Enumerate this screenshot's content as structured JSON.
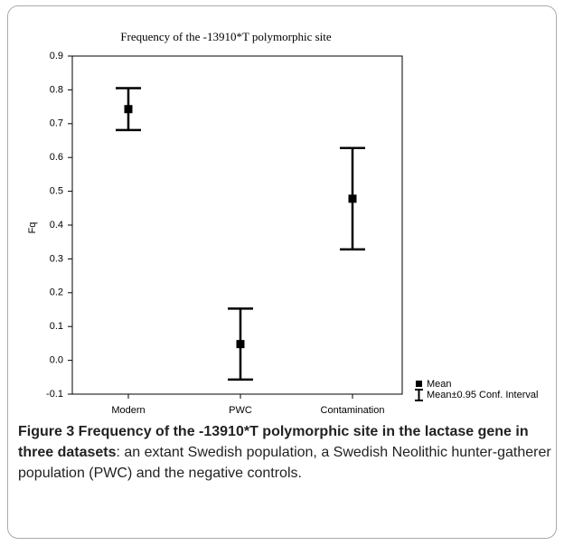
{
  "chart_data": {
    "type": "errorbar",
    "title": "Frequency of the -13910*T polymorphic site",
    "categories": [
      "Modern",
      "PWC",
      "Contamination"
    ],
    "values": [
      0.743,
      0.048,
      0.478
    ],
    "errors": [
      0.062,
      0.105,
      0.15
    ],
    "color": "#000000",
    "ylabel": "Fq",
    "ylim": [
      -0.1,
      0.9
    ],
    "yticks": [
      -0.1,
      {
        "value": 0,
        "label": "0.0"
      },
      0.1,
      0.2,
      0.3,
      0.4,
      0.5,
      0.6,
      0.7,
      0.8,
      0.9
    ],
    "legend": [
      "Mean",
      "Mean±0.95 Conf. Interval"
    ],
    "legend_position": "lower right"
  },
  "caption": {
    "title": "Figure 3 Frequency of the -13910*T polymorphic site in the lactase gene in three datasets",
    "text": ": an extant Swedish population, a Swedish Neolithic hunter-gatherer population (PWC) and the negative controls."
  }
}
